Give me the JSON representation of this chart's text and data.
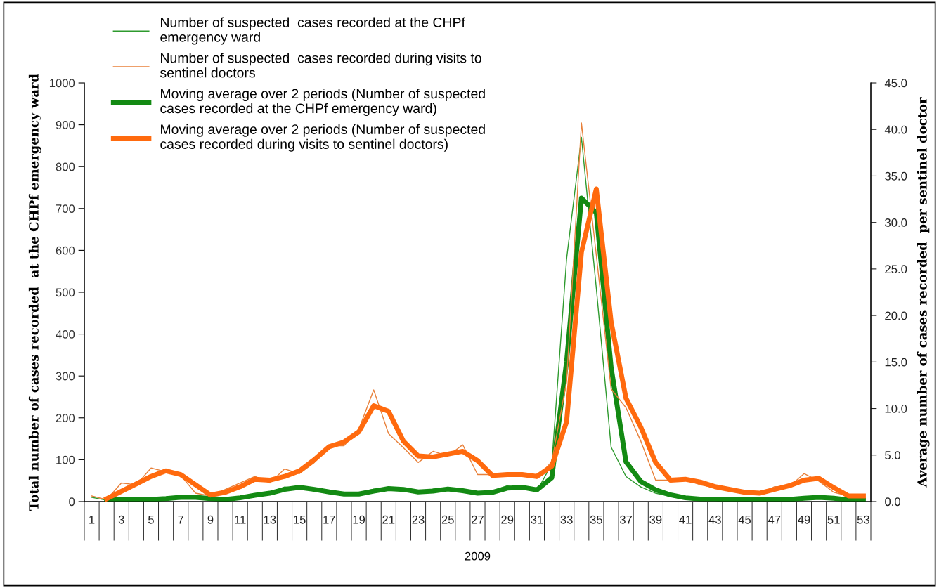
{
  "chart_data": {
    "type": "line",
    "xlabel": "2009",
    "ylabel": "Total number of cases recorded  at the CHPf emergency ward",
    "y2label": "Average number of cases recorded  per sentinel doctor",
    "categories": [
      "1",
      null,
      "3",
      null,
      "5",
      null,
      "7",
      null,
      "9",
      null,
      "11",
      null,
      "13",
      null,
      "15",
      null,
      "17",
      null,
      "19",
      null,
      "21",
      null,
      "23",
      null,
      "25",
      null,
      "27",
      null,
      "29",
      null,
      "31",
      null,
      "33",
      null,
      "35",
      null,
      "37",
      null,
      "39",
      null,
      "41",
      null,
      "43",
      null,
      "45",
      null,
      "47",
      null,
      "49",
      null,
      "51",
      null,
      "53"
    ],
    "series": [
      {
        "name": "Number of suspected  cases recorded at the CHPf emergency ward",
        "color": "#2e9a2e",
        "values": [
          10,
          3,
          5,
          5,
          5,
          8,
          12,
          8,
          5,
          5,
          12,
          18,
          22,
          35,
          32,
          25,
          20,
          15,
          20,
          30,
          32,
          25,
          20,
          30,
          30,
          22,
          18,
          25,
          38,
          30,
          25,
          90,
          580,
          870,
          510,
          130,
          60,
          35,
          20,
          12,
          6,
          6,
          6,
          5,
          4,
          4,
          4,
          6,
          10,
          10,
          6,
          3,
          3
        ]
      },
      {
        "name": "Number of suspected  cases recorded during visits to sentinel doctors",
        "color": "#e8803a",
        "axis": "y2",
        "values": [
          0.6,
          0.2,
          2.0,
          1.8,
          3.6,
          3.2,
          2.8,
          0.9,
          0.6,
          1.3,
          2.0,
          2.7,
          2.0,
          3.5,
          3.0,
          4.2,
          6.0,
          6.0,
          7.8,
          12.0,
          7.3,
          5.8,
          4.2,
          5.4,
          4.9,
          6.1,
          2.9,
          2.9,
          2.9,
          2.9,
          2.5,
          4.3,
          12.9,
          40.7,
          26.5,
          12.1,
          10.1,
          6.5,
          2.3,
          2.3,
          2.4,
          1.8,
          1.5,
          1.2,
          0.9,
          0.8,
          1.6,
          1.6,
          3.0,
          2.2,
          1.0,
          0.6,
          0.6
        ]
      },
      {
        "name": "Moving average over 2 periods (Number of suspected cases recorded at the CHPf emergency ward)",
        "color": "#138a13",
        "values": [
          null,
          3,
          5,
          5,
          5,
          7,
          10,
          10,
          7,
          5,
          9,
          15,
          20,
          29,
          34,
          29,
          23,
          18,
          18,
          25,
          31,
          29,
          23,
          25,
          30,
          26,
          20,
          22,
          32,
          34,
          28,
          57,
          335,
          725,
          690,
          320,
          95,
          48,
          28,
          16,
          9,
          6,
          6,
          5,
          4,
          4,
          4,
          5,
          8,
          10,
          8,
          4,
          3
        ]
      },
      {
        "name": "Moving average over 2 periods (Number of suspected cases recorded during visits to sentinel doctors)",
        "color": "#ff6a0e",
        "axis": "y2",
        "values": [
          null,
          0.3,
          1.1,
          1.9,
          2.7,
          3.3,
          2.9,
          1.8,
          0.7,
          1.0,
          1.6,
          2.4,
          2.3,
          2.7,
          3.3,
          4.5,
          5.9,
          6.4,
          7.5,
          10.3,
          9.7,
          6.5,
          4.9,
          4.8,
          5.1,
          5.4,
          4.4,
          2.8,
          2.9,
          2.9,
          2.7,
          3.8,
          8.6,
          26.8,
          33.6,
          19.3,
          11.1,
          8.0,
          4.2,
          2.3,
          2.4,
          2.1,
          1.6,
          1.3,
          1.0,
          0.9,
          1.3,
          1.7,
          2.3,
          2.5,
          1.5,
          0.6,
          0.6
        ]
      }
    ],
    "ylim": [
      0,
      1000
    ],
    "yticks": [
      0,
      100,
      200,
      300,
      400,
      500,
      600,
      700,
      800,
      900,
      1000
    ],
    "y2lim": [
      0,
      45
    ],
    "y2ticks": [
      {
        "value": 0,
        "label": "0.0"
      },
      {
        "value": 5,
        "label": "5.0"
      },
      {
        "value": 10,
        "label": "10.0"
      },
      {
        "value": 15,
        "label": "15.0"
      },
      {
        "value": 20,
        "label": "20.0"
      },
      {
        "value": 25,
        "label": "25.0"
      },
      {
        "value": 30,
        "label": "30.0"
      },
      {
        "value": 35,
        "label": "35.0"
      },
      {
        "value": 40,
        "label": "40.0"
      },
      {
        "value": 45,
        "label": "45.0"
      }
    ],
    "grid": false,
    "legend": "top left",
    "marker": "none",
    "line_style": "solid"
  }
}
